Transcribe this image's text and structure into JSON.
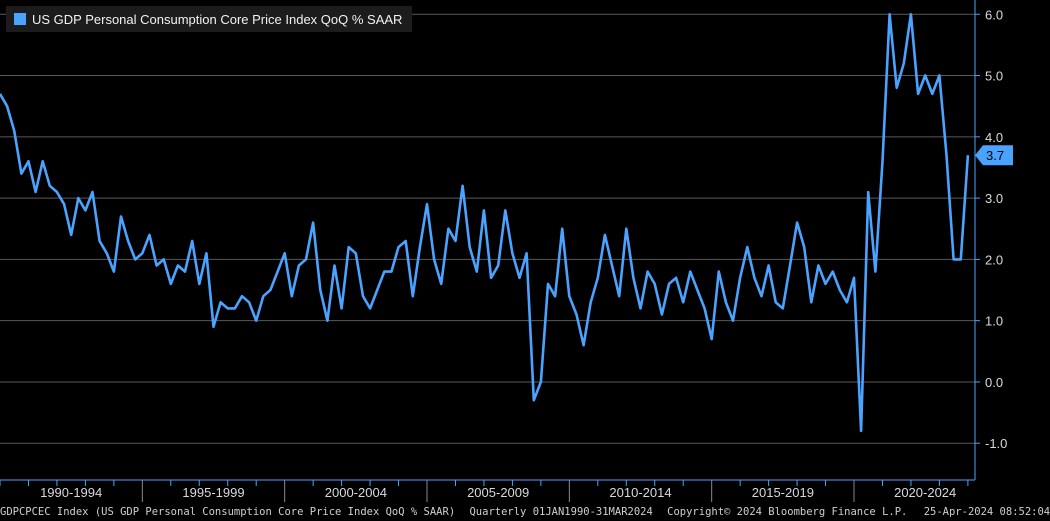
{
  "legend": {
    "label": "US GDP Personal Consumption Core Price Index QoQ % SAAR",
    "color": "#4aa3ff"
  },
  "last_value_label": "3.7",
  "footer": {
    "source": "GDPCPCEC Index (US GDP Personal Consumption Core Price Index QoQ % SAAR)",
    "period": "Quarterly 01JAN1990-31MAR2024",
    "copyright": "Copyright© 2024 Bloomberg Finance L.P.",
    "timestamp": "25-Apr-2024 08:52:04"
  },
  "colors": {
    "background": "#000000",
    "series": "#4aa3ff",
    "grid": "#5a5a5a",
    "axis": "#4aa3ff",
    "text": "#d9d9d9"
  },
  "chart_data": {
    "type": "line",
    "title": "",
    "xlabel": "",
    "ylabel": "",
    "ylim": [
      -1.6,
      6.2
    ],
    "yticks": [
      -1.0,
      0.0,
      1.0,
      2.0,
      3.0,
      4.0,
      5.0,
      6.0
    ],
    "ytick_labels": [
      "-1.0",
      "0.0",
      "1.0",
      "2.0",
      "3.0",
      "4.0",
      "5.0",
      "6.0"
    ],
    "x_range": [
      1990.0,
      2024.25
    ],
    "x_groups": [
      {
        "label": "1990-1994",
        "start": 1990,
        "end": 1995
      },
      {
        "label": "1995-1999",
        "start": 1995,
        "end": 2000
      },
      {
        "label": "2000-2004",
        "start": 2000,
        "end": 2005
      },
      {
        "label": "2005-2009",
        "start": 2005,
        "end": 2010
      },
      {
        "label": "2010-2014",
        "start": 2010,
        "end": 2015
      },
      {
        "label": "2015-2019",
        "start": 2015,
        "end": 2020
      },
      {
        "label": "2020-2024",
        "start": 2020,
        "end": 2025
      }
    ],
    "grid": true,
    "y_axis_position": "right",
    "series": [
      {
        "name": "US GDP Personal Consumption Core Price Index QoQ % SAAR",
        "start": "1990Q1",
        "frequency": "quarterly",
        "values": [
          4.7,
          4.5,
          4.1,
          3.4,
          3.6,
          3.1,
          3.6,
          3.2,
          3.1,
          2.9,
          2.4,
          3.0,
          2.8,
          3.1,
          2.3,
          2.1,
          1.8,
          2.7,
          2.3,
          2.0,
          2.1,
          2.4,
          1.9,
          2.0,
          1.6,
          1.9,
          1.8,
          2.3,
          1.6,
          2.1,
          0.9,
          1.3,
          1.2,
          1.2,
          1.4,
          1.3,
          1.0,
          1.4,
          1.5,
          1.8,
          2.1,
          1.4,
          1.9,
          2.0,
          2.6,
          1.5,
          1.0,
          1.9,
          1.2,
          2.2,
          2.1,
          1.4,
          1.2,
          1.5,
          1.8,
          1.8,
          2.2,
          2.3,
          1.4,
          2.2,
          2.9,
          2.0,
          1.6,
          2.5,
          2.3,
          3.2,
          2.2,
          1.8,
          2.8,
          1.7,
          1.9,
          2.8,
          2.1,
          1.7,
          2.1,
          -0.3,
          0.0,
          1.6,
          1.4,
          2.5,
          1.4,
          1.1,
          0.6,
          1.3,
          1.7,
          2.4,
          1.9,
          1.4,
          2.5,
          1.7,
          1.2,
          1.8,
          1.6,
          1.1,
          1.6,
          1.7,
          1.3,
          1.8,
          1.5,
          1.2,
          0.7,
          1.8,
          1.3,
          1.0,
          1.7,
          2.2,
          1.7,
          1.4,
          1.9,
          1.3,
          1.2,
          1.9,
          2.6,
          2.2,
          1.3,
          1.9,
          1.6,
          1.8,
          1.5,
          1.3,
          1.7,
          -0.8,
          3.1,
          1.8,
          3.6,
          6.0,
          4.8,
          5.2,
          6.0,
          4.7,
          5.0,
          4.7,
          5.0,
          3.7,
          2.0,
          2.0,
          3.7
        ]
      }
    ]
  }
}
